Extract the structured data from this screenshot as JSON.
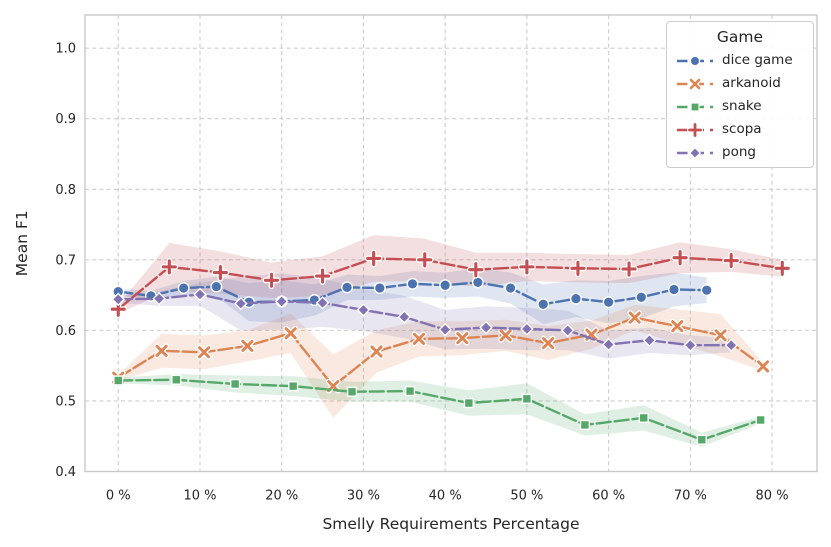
{
  "chart_data": {
    "type": "line",
    "title": "",
    "xlabel": "Smelly Requirements Percentage",
    "ylabel": "Mean F1",
    "xlim": [
      -4.07,
      85.5
    ],
    "ylim": [
      0.4,
      1.047
    ],
    "grid": "dashed",
    "x_ticks": [
      {
        "v": 0,
        "label": "0 %"
      },
      {
        "v": 10,
        "label": "10 %"
      },
      {
        "v": 20,
        "label": "20 %"
      },
      {
        "v": 30,
        "label": "30 %"
      },
      {
        "v": 40,
        "label": "40 %"
      },
      {
        "v": 50,
        "label": "50 %"
      },
      {
        "v": 60,
        "label": "60 %"
      },
      {
        "v": 70,
        "label": "70 %"
      },
      {
        "v": 80,
        "label": "80 %"
      }
    ],
    "y_ticks": [
      {
        "v": 0.4,
        "label": "0.4"
      },
      {
        "v": 0.5,
        "label": "0.5"
      },
      {
        "v": 0.6,
        "label": "0.6"
      },
      {
        "v": 0.7,
        "label": "0.7"
      },
      {
        "v": 0.8,
        "label": "0.8"
      },
      {
        "v": 0.9,
        "label": "0.9"
      },
      {
        "v": 1.0,
        "label": "1.0"
      }
    ],
    "legend": {
      "title": "Game",
      "position": "upper right"
    },
    "series": [
      {
        "name": "dice game",
        "color": "#4C72B0",
        "marker": "circle",
        "x": [
          0,
          4,
          8,
          12,
          16,
          20,
          24,
          28,
          32,
          36,
          40,
          44,
          48,
          52,
          56,
          60,
          64,
          68,
          72
        ],
        "y": [
          0.655,
          0.649,
          0.66,
          0.662,
          0.64,
          0.641,
          0.643,
          0.661,
          0.66,
          0.666,
          0.664,
          0.668,
          0.66,
          0.637,
          0.645,
          0.64,
          0.647,
          0.658,
          0.657
        ],
        "band": [
          0.004,
          0.007,
          0.01,
          0.014,
          0.027,
          0.03,
          0.022,
          0.018,
          0.017,
          0.018,
          0.018,
          0.02,
          0.022,
          0.028,
          0.026,
          0.03,
          0.03,
          0.024,
          0.018
        ]
      },
      {
        "name": "arkanoid",
        "color": "#DD8452",
        "marker": "x",
        "x": [
          0,
          5.3,
          10.5,
          15.8,
          21.1,
          26.3,
          31.6,
          36.8,
          42.1,
          47.4,
          52.6,
          57.9,
          63.2,
          68.4,
          73.7,
          78.9
        ],
        "y": [
          0.533,
          0.571,
          0.569,
          0.578,
          0.596,
          0.521,
          0.57,
          0.588,
          0.589,
          0.593,
          0.582,
          0.594,
          0.618,
          0.606,
          0.593,
          0.549
        ],
        "band": [
          0.004,
          0.024,
          0.024,
          0.022,
          0.028,
          0.045,
          0.03,
          0.025,
          0.024,
          0.022,
          0.024,
          0.02,
          0.018,
          0.024,
          0.03,
          0.006
        ]
      },
      {
        "name": "snake",
        "color": "#55A868",
        "marker": "square",
        "x": [
          0,
          7.1,
          14.3,
          21.4,
          28.6,
          35.7,
          42.9,
          50,
          57.1,
          64.3,
          71.4,
          78.6
        ],
        "y": [
          0.529,
          0.53,
          0.524,
          0.521,
          0.513,
          0.514,
          0.497,
          0.503,
          0.466,
          0.476,
          0.445,
          0.473
        ],
        "band": [
          0.004,
          0.008,
          0.012,
          0.014,
          0.014,
          0.015,
          0.018,
          0.022,
          0.015,
          0.018,
          0.01,
          0.005
        ]
      },
      {
        "name": "scopa",
        "color": "#C44E52",
        "marker": "plus",
        "x": [
          0,
          6.25,
          12.5,
          18.75,
          25,
          31.25,
          37.5,
          43.75,
          50,
          56.25,
          62.5,
          68.75,
          75,
          81.25
        ],
        "y": [
          0.63,
          0.69,
          0.682,
          0.671,
          0.677,
          0.702,
          0.7,
          0.686,
          0.69,
          0.688,
          0.687,
          0.703,
          0.699,
          0.688
        ],
        "band": [
          0.006,
          0.034,
          0.03,
          0.025,
          0.028,
          0.033,
          0.03,
          0.024,
          0.02,
          0.02,
          0.02,
          0.022,
          0.016,
          0.012
        ]
      },
      {
        "name": "pong",
        "color": "#8172B3",
        "marker": "diamond",
        "x": [
          0,
          5,
          10,
          15,
          20,
          25,
          30,
          35,
          40,
          45,
          50,
          55,
          60,
          65,
          70,
          75
        ],
        "y": [
          0.644,
          0.645,
          0.651,
          0.638,
          0.641,
          0.639,
          0.629,
          0.619,
          0.601,
          0.604,
          0.602,
          0.6,
          0.58,
          0.586,
          0.579,
          0.579
        ],
        "band": [
          0.005,
          0.01,
          0.016,
          0.038,
          0.04,
          0.034,
          0.03,
          0.03,
          0.028,
          0.03,
          0.03,
          0.028,
          0.02,
          0.018,
          0.014,
          0.01
        ]
      }
    ]
  }
}
